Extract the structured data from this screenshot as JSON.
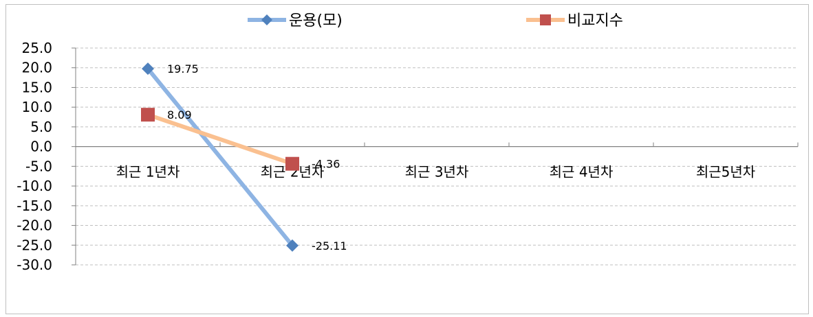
{
  "chart_data": {
    "type": "line",
    "categories": [
      "최근 1년차",
      "최근 2년차",
      "최근 3년차",
      "최근 4년차",
      "최근5년차"
    ],
    "series": [
      {
        "name": "운용(모)",
        "values": [
          19.75,
          -25.11,
          null,
          null,
          null
        ],
        "labels": [
          "19.75",
          "-25.11"
        ],
        "color": "#8eb4e3",
        "marker": "diamond",
        "marker_color": "#4f81bd"
      },
      {
        "name": "비교지수",
        "values": [
          8.09,
          -4.36,
          null,
          null,
          null
        ],
        "labels": [
          "8.09",
          "-4.36"
        ],
        "color": "#fac090",
        "marker": "square",
        "marker_color": "#c0504d"
      }
    ],
    "yticks": [
      "25.0",
      "20.0",
      "15.0",
      "10.0",
      "5.0",
      "0.0",
      "-5.0",
      "-10.0",
      "-15.0",
      "-20.0",
      "-25.0",
      "-30.0"
    ],
    "ylim": [
      -30,
      25
    ],
    "grid": true,
    "legend_position": "top",
    "title": "",
    "xlabel": "",
    "ylabel": ""
  }
}
